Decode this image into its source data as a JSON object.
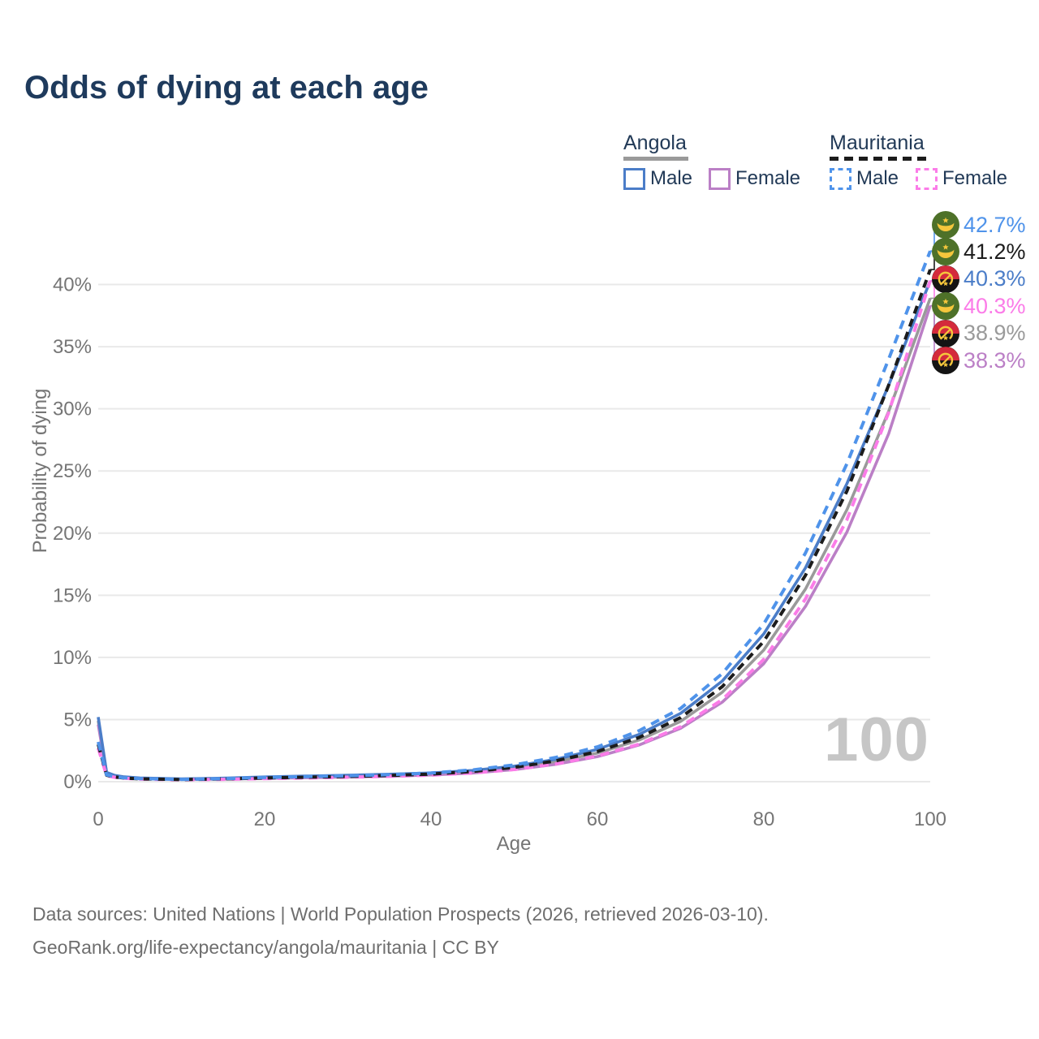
{
  "title": "Odds of dying at each age",
  "legend": {
    "groups": [
      {
        "name": "Angola",
        "line_style": "solid",
        "underline_color": "#9a9a9a",
        "items": [
          {
            "label": "Male",
            "color": "#4b7dc8"
          },
          {
            "label": "Female",
            "color": "#bb7fc6"
          }
        ]
      },
      {
        "name": "Mauritania",
        "line_style": "dashed",
        "underline_color": "#1c1c1c",
        "items": [
          {
            "label": "Male",
            "color": "#4f93ea"
          },
          {
            "label": "Female",
            "color": "#fb7ce8"
          }
        ]
      }
    ]
  },
  "chart_data": {
    "type": "line",
    "title": "Odds of dying at each age",
    "xlabel": "Age",
    "ylabel": "Probability of dying",
    "xlim": [
      0,
      100
    ],
    "ylim": [
      0,
      45
    ],
    "grid": "horizontal",
    "x_ticks": [
      {
        "value": 0,
        "label": "0"
      },
      {
        "value": 20,
        "label": "20"
      },
      {
        "value": 40,
        "label": "40"
      },
      {
        "value": 60,
        "label": "60"
      },
      {
        "value": 80,
        "label": "80"
      },
      {
        "value": 100,
        "label": "100"
      }
    ],
    "y_ticks": [
      {
        "value": 0,
        "label": "0%"
      },
      {
        "value": 5,
        "label": "5%"
      },
      {
        "value": 10,
        "label": "10%"
      },
      {
        "value": 15,
        "label": "15%"
      },
      {
        "value": 20,
        "label": "20%"
      },
      {
        "value": 25,
        "label": "25%"
      },
      {
        "value": 30,
        "label": "30%"
      },
      {
        "value": 35,
        "label": "35%"
      },
      {
        "value": 40,
        "label": "40%"
      }
    ],
    "x": [
      0,
      1,
      2,
      3,
      5,
      10,
      15,
      20,
      25,
      30,
      35,
      40,
      45,
      50,
      55,
      60,
      65,
      70,
      75,
      80,
      85,
      90,
      95,
      100
    ],
    "series": [
      {
        "key": "angola_total",
        "name": "Angola",
        "country": "Angola",
        "sex": "Both",
        "color": "#9a9a9a",
        "dash": null,
        "values": [
          4.9,
          0.7,
          0.47,
          0.37,
          0.28,
          0.2,
          0.25,
          0.33,
          0.39,
          0.45,
          0.52,
          0.62,
          0.8,
          1.1,
          1.6,
          2.3,
          3.35,
          4.85,
          7.2,
          10.6,
          15.5,
          21.9,
          29.8,
          38.9
        ]
      },
      {
        "key": "angola_female",
        "name": "Angola Female",
        "country": "Angola",
        "sex": "Female",
        "color": "#bb7fc6",
        "dash": null,
        "values": [
          4.6,
          0.65,
          0.44,
          0.34,
          0.26,
          0.18,
          0.21,
          0.27,
          0.32,
          0.38,
          0.44,
          0.54,
          0.7,
          0.97,
          1.4,
          2.02,
          2.95,
          4.3,
          6.4,
          9.5,
          14.1,
          20.1,
          28.0,
          38.3
        ]
      },
      {
        "key": "angola_male",
        "name": "Angola Male",
        "country": "Angola",
        "sex": "Male",
        "color": "#4b7dc8",
        "dash": null,
        "values": [
          5.2,
          0.75,
          0.5,
          0.4,
          0.3,
          0.22,
          0.28,
          0.38,
          0.45,
          0.52,
          0.6,
          0.7,
          0.9,
          1.25,
          1.8,
          2.6,
          3.8,
          5.5,
          8.1,
          11.9,
          17.2,
          24.0,
          31.9,
          40.3
        ]
      },
      {
        "key": "mauritania_female",
        "name": "Mauritania Female",
        "country": "Mauritania",
        "sex": "Female",
        "color": "#fb7ce8",
        "dash": "11 8",
        "values": [
          2.7,
          0.48,
          0.35,
          0.28,
          0.21,
          0.15,
          0.19,
          0.25,
          0.3,
          0.36,
          0.43,
          0.53,
          0.7,
          0.98,
          1.43,
          2.07,
          3.02,
          4.42,
          6.6,
          9.85,
          14.7,
          21.1,
          29.7,
          40.3
        ]
      },
      {
        "key": "mauritania_total",
        "name": "Mauritania",
        "country": "Mauritania",
        "sex": "Both",
        "color": "#1c1c1c",
        "dash": "10 7",
        "values": [
          3.0,
          0.52,
          0.38,
          0.3,
          0.23,
          0.17,
          0.22,
          0.3,
          0.36,
          0.42,
          0.5,
          0.61,
          0.82,
          1.15,
          1.68,
          2.42,
          3.55,
          5.15,
          7.65,
          11.3,
          16.6,
          23.4,
          31.9,
          41.2
        ]
      },
      {
        "key": "mauritania_male",
        "name": "Mauritania Male",
        "country": "Mauritania",
        "sex": "Male",
        "color": "#4f93ea",
        "dash": "11 8",
        "values": [
          3.2,
          0.55,
          0.4,
          0.32,
          0.25,
          0.18,
          0.24,
          0.34,
          0.41,
          0.48,
          0.57,
          0.7,
          0.95,
          1.35,
          1.95,
          2.8,
          4.1,
          5.9,
          8.7,
          12.7,
          18.4,
          25.6,
          34.0,
          42.7
        ]
      }
    ],
    "end_labels": [
      {
        "value": "42.7%",
        "series_key": "mauritania_male",
        "flag": "mauritania",
        "color": "#4f93ea"
      },
      {
        "value": "41.2%",
        "series_key": "mauritania_total",
        "flag": "mauritania",
        "color": "#1c1c1c"
      },
      {
        "value": "40.3%",
        "series_key": "angola_male",
        "flag": "angola",
        "color": "#4b7dc8"
      },
      {
        "value": "40.3%",
        "series_key": "mauritania_female",
        "flag": "mauritania",
        "color": "#fb7ce8"
      },
      {
        "value": "38.9%",
        "series_key": "angola_total",
        "flag": "angola",
        "color": "#9a9a9a"
      },
      {
        "value": "38.3%",
        "series_key": "angola_female",
        "flag": "angola",
        "color": "#bb7fc6"
      }
    ]
  },
  "watermark": "100",
  "footer": {
    "line1": "Data sources: United Nations | World Population Prospects (2026, retrieved 2026-03-10).",
    "line2": "GeoRank.org/life-expectancy/angola/mauritania | CC BY"
  }
}
